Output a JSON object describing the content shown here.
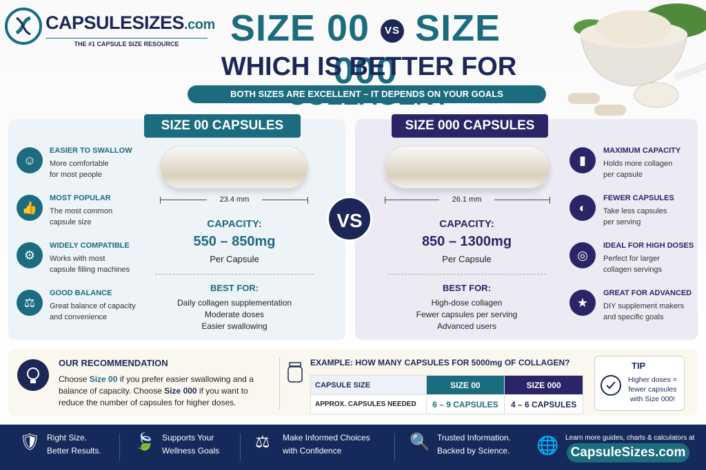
{
  "brand": {
    "name": "CAPSULESIZES",
    "domain": ".com",
    "tagline": "THE #1 CAPSULE SIZE RESOURCE"
  },
  "header": {
    "left": "SIZE 00",
    "vs": "VS",
    "right": "SIZE 000",
    "question": "WHICH IS BETTER FOR",
    "topic": "COLLAGEN?",
    "banner": "BOTH SIZES ARE EXCELLENT – IT DEPENDS ON YOUR GOALS"
  },
  "vs": "VS",
  "panels": [
    {
      "title": "SIZE 00 CAPSULES",
      "length": "23.4 mm",
      "capacity_label": "CAPACITY:",
      "capacity": "550 – 850mg",
      "per": "Per Capsule",
      "best_label": "BEST FOR:",
      "best": [
        "Daily collagen supplementation",
        "Moderate doses",
        "Easier swallowing"
      ],
      "features": [
        {
          "title": "EASIER TO SWALLOW",
          "text": [
            "More comfortable",
            "for most people"
          ]
        },
        {
          "title": "MOST POPULAR",
          "text": [
            "The most common",
            "capsule size"
          ]
        },
        {
          "title": "WIDELY COMPATIBLE",
          "text": [
            "Works with most",
            "capsule filling machines"
          ]
        },
        {
          "title": "GOOD BALANCE",
          "text": [
            "Great balance of capacity",
            "and convenience"
          ]
        }
      ]
    },
    {
      "title": "SIZE 000 CAPSULES",
      "length": "26.1 mm",
      "capacity_label": "CAPACITY:",
      "capacity": "850 – 1300mg",
      "per": "Per Capsule",
      "best_label": "BEST FOR:",
      "best": [
        "High-dose collagen",
        "Fewer capsules per serving",
        "Advanced users"
      ],
      "features": [
        {
          "title": "MAXIMUM CAPACITY",
          "text": [
            "Holds more collagen",
            "per capsule"
          ]
        },
        {
          "title": "FEWER CAPSULES",
          "text": [
            "Take less capsules",
            "per serving"
          ]
        },
        {
          "title": "IDEAL FOR HIGH DOSES",
          "text": [
            "Perfect for larger",
            "collagen servings"
          ]
        },
        {
          "title": "GREAT FOR ADVANCED",
          "text": [
            "DIY supplement makers",
            "and specific goals"
          ]
        }
      ]
    }
  ],
  "recommendation": {
    "title": "OUR RECOMMENDATION",
    "text": [
      "Choose ",
      "Size 00",
      " if you prefer easier swallowing and a balance of capacity. Choose ",
      "Size 000",
      " if you want to reduce the number of capsules for higher doses."
    ]
  },
  "example": {
    "title": "EXAMPLE: HOW MANY CAPSULES FOR 5000mg OF COLLAGEN?",
    "table": {
      "header": [
        "CAPSULE SIZE",
        "SIZE 00",
        "SIZE 000"
      ],
      "rows": [
        [
          "APPROX. CAPSULES NEEDED",
          "6 – 9 CAPSULES",
          "4 – 6 CAPSULES"
        ]
      ]
    }
  },
  "tip": {
    "title": "TIP",
    "text": [
      "Higher doses =",
      "fewer capsules",
      "with Size 000!"
    ]
  },
  "footer": {
    "items": [
      [
        "Right Size.",
        "Better Results."
      ],
      [
        "Supports Your",
        "Wellness Goals"
      ],
      [
        "Make Informed Choices",
        "with Confidence"
      ],
      [
        "Trusted Information.",
        "Backed by Science."
      ]
    ],
    "cta": "Learn more guides, charts & calculators at",
    "url": "CapsuleSizes.com"
  }
}
